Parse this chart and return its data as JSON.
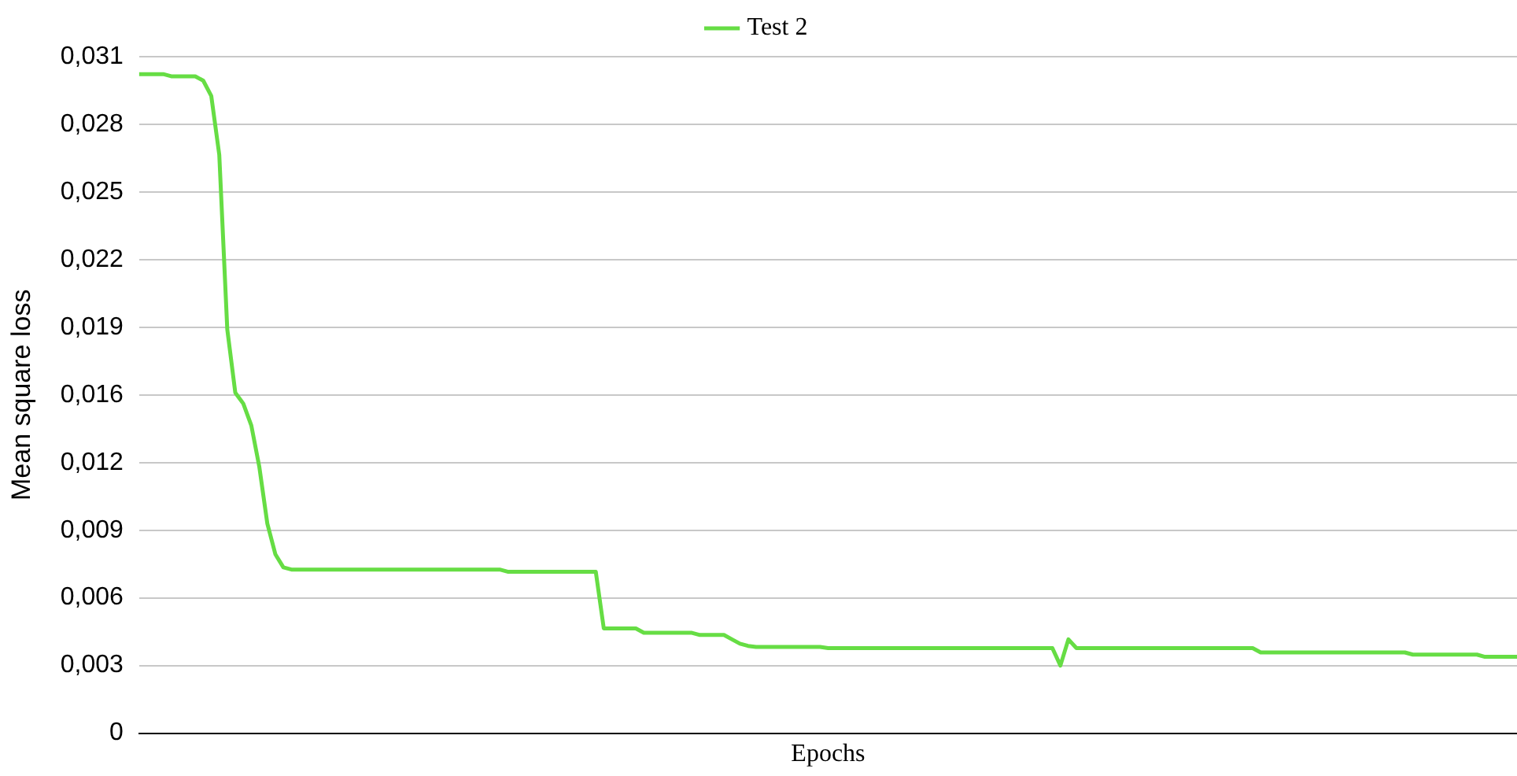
{
  "chart_data": {
    "type": "line",
    "xlabel": "Epochs",
    "ylabel": "Mean square loss",
    "categories": [
      null,
      null,
      null,
      null,
      null,
      null,
      null,
      null,
      null,
      null,
      null,
      null,
      null,
      null,
      null,
      null,
      null,
      null,
      null,
      null,
      null,
      null,
      null,
      null,
      null,
      null,
      null,
      null,
      null,
      null,
      null,
      null,
      null,
      null,
      null,
      null,
      null,
      null,
      null,
      null,
      null,
      null,
      null,
      null,
      null,
      null,
      null,
      null,
      null,
      null,
      null,
      null,
      null,
      null,
      null,
      null,
      null,
      null,
      null,
      null,
      null,
      null,
      null,
      null,
      null,
      null,
      null,
      null,
      null,
      null,
      null,
      null,
      null,
      null,
      null,
      null,
      null,
      null,
      null,
      null,
      null,
      null,
      null,
      null,
      null,
      null,
      null,
      null,
      null,
      null,
      null,
      null,
      null,
      null,
      null,
      null,
      null,
      null,
      null,
      null,
      null,
      null,
      null,
      null,
      null,
      null,
      null,
      null,
      null,
      null,
      null,
      null,
      null,
      null,
      null,
      null,
      null,
      null,
      null,
      null,
      null,
      null,
      null,
      null,
      null,
      null,
      null,
      null,
      null,
      null,
      null,
      null,
      null,
      null,
      null,
      null,
      null,
      null,
      null,
      null,
      null,
      null,
      null,
      null,
      null,
      null,
      null,
      null,
      null,
      null,
      null,
      null,
      null,
      null,
      null,
      null,
      null,
      null,
      null,
      null,
      null,
      null,
      null,
      null,
      null,
      null,
      null,
      null,
      null,
      null,
      null,
      null,
      null
    ],
    "series": [
      {
        "name": "Test 2",
        "color": "#66dd44",
        "values": [
          0.0302,
          0.0302,
          0.0302,
          0.0302,
          0.0301,
          0.0301,
          0.0301,
          0.0301,
          0.0299,
          0.0292,
          0.0265,
          0.0185,
          0.0156,
          0.0151,
          0.0141,
          0.0122,
          0.0096,
          0.0082,
          0.0076,
          0.0075,
          0.0075,
          0.0075,
          0.0075,
          0.0075,
          0.0075,
          0.0075,
          0.0075,
          0.0075,
          0.0075,
          0.0075,
          0.0075,
          0.0075,
          0.0075,
          0.0075,
          0.0075,
          0.0075,
          0.0075,
          0.0075,
          0.0075,
          0.0075,
          0.0075,
          0.0075,
          0.0075,
          0.0075,
          0.0075,
          0.0075,
          0.0074,
          0.0074,
          0.0074,
          0.0074,
          0.0074,
          0.0074,
          0.0074,
          0.0074,
          0.0074,
          0.0074,
          0.0074,
          0.0074,
          0.0048,
          0.0048,
          0.0048,
          0.0048,
          0.0048,
          0.0046,
          0.0046,
          0.0046,
          0.0046,
          0.0046,
          0.0046,
          0.0046,
          0.0045,
          0.0045,
          0.0045,
          0.0045,
          0.0043,
          0.0041,
          0.004,
          0.00395,
          0.00395,
          0.00395,
          0.00395,
          0.00395,
          0.00395,
          0.00395,
          0.00395,
          0.00395,
          0.0039,
          0.0039,
          0.0039,
          0.0039,
          0.0039,
          0.0039,
          0.0039,
          0.0039,
          0.0039,
          0.0039,
          0.0039,
          0.0039,
          0.0039,
          0.0039,
          0.0039,
          0.0039,
          0.0039,
          0.0039,
          0.0039,
          0.0039,
          0.0039,
          0.0039,
          0.0039,
          0.0039,
          0.0039,
          0.0039,
          0.0039,
          0.0039,
          0.0039,
          0.0031,
          0.0043,
          0.0039,
          0.0039,
          0.0039,
          0.0039,
          0.0039,
          0.0039,
          0.0039,
          0.0039,
          0.0039,
          0.0039,
          0.0039,
          0.0039,
          0.0039,
          0.0039,
          0.0039,
          0.0039,
          0.0039,
          0.0039,
          0.0039,
          0.0039,
          0.0039,
          0.0039,
          0.0039,
          0.0037,
          0.0037,
          0.0037,
          0.0037,
          0.0037,
          0.0037,
          0.0037,
          0.0037,
          0.0037,
          0.0037,
          0.0037,
          0.0037,
          0.0037,
          0.0037,
          0.0037,
          0.0037,
          0.0037,
          0.0037,
          0.0037,
          0.0036,
          0.0036,
          0.0036,
          0.0036,
          0.0036,
          0.0036,
          0.0036,
          0.0036,
          0.0036,
          0.0035,
          0.0035,
          0.0035,
          0.0035,
          0.0035
        ]
      }
    ],
    "ylim": [
      0,
      0.031
    ],
    "yticks": [
      0,
      {
        "value": 0.0031,
        "label": "0,003"
      },
      {
        "value": 0.0062,
        "label": "0,006"
      },
      {
        "value": 0.0093,
        "label": "0,009"
      },
      {
        "value": 0.0124,
        "label": "0,012"
      },
      {
        "value": 0.0155,
        "label": "0,016"
      },
      {
        "value": 0.0186,
        "label": "0,019"
      },
      {
        "value": 0.0217,
        "label": "0,022"
      },
      {
        "value": 0.0248,
        "label": "0,025"
      },
      {
        "value": 0.0279,
        "label": "0,028"
      },
      {
        "value": 0.031,
        "label": "0,031"
      }
    ],
    "grid": "y",
    "legend": "top",
    "tick_labels": "y",
    "marker": "none",
    "line_style": "solid"
  }
}
